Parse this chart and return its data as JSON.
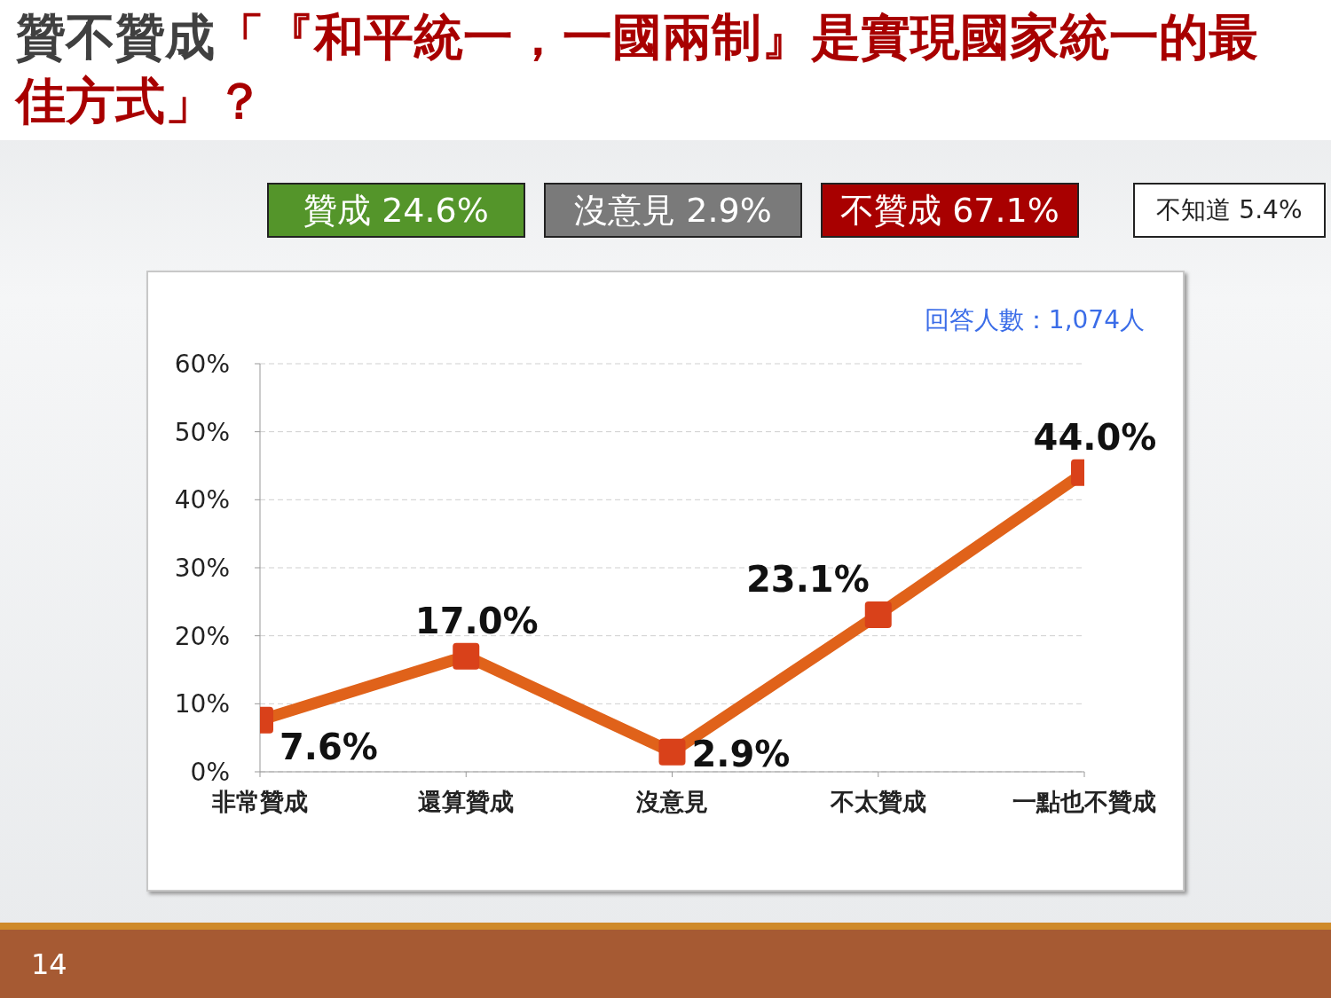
{
  "chart_data": {
    "type": "line",
    "title": "贊不贊成「『和平統一，一國兩制』是實現國家統一的最佳方式」？",
    "categories": [
      "非常贊成",
      "還算贊成",
      "沒意見",
      "不太贊成",
      "一點也不贊成"
    ],
    "series": [
      {
        "color": "#e0621a",
        "values": [
          7.6,
          17.0,
          2.9,
          23.1,
          44.0
        ]
      }
    ],
    "ylim": [
      0,
      60
    ],
    "yticks": [
      {
        "value": 0,
        "label": "0%"
      },
      {
        "value": 10,
        "label": "10%"
      },
      {
        "value": 20,
        "label": "20%"
      },
      {
        "value": 30,
        "label": "30%"
      },
      {
        "value": 40,
        "label": "40%"
      },
      {
        "value": 50,
        "label": "50%"
      },
      {
        "value": 60,
        "label": "60%"
      }
    ],
    "grid": "y",
    "marker": "square",
    "line_style": "solid",
    "legend": false,
    "value_labels": [
      "7.6%",
      "17.0%",
      "2.9%",
      "23.1%",
      "44.0%"
    ],
    "annotations": [
      "贊成 24.6%",
      "沒意見 2.9%",
      "不贊成 67.1%",
      "不知道 5.4%",
      "回答人數：1,074人",
      "14"
    ]
  }
}
